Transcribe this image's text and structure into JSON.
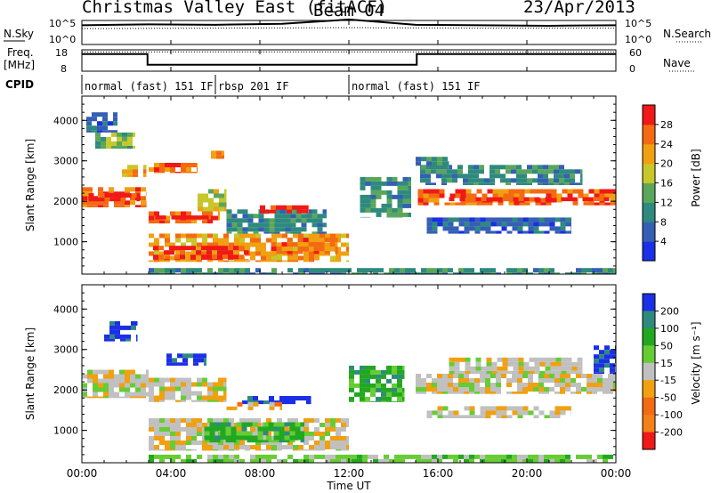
{
  "header": {
    "station": "Christmas Valley East (fitACF)",
    "beam": "Beam 04",
    "date": "23/Apr/2013"
  },
  "side_labels": {
    "nsky": "N.Sky",
    "nsearch": "N.Search",
    "freq": "Freq.",
    "freq_unit": "[MHz]",
    "nave": "Nave",
    "cpid": "CPID"
  },
  "noise_axis": {
    "left_ticks": [
      "10^5",
      "10^0"
    ],
    "right_ticks": [
      "10^5",
      "10^0"
    ]
  },
  "freq_axis": {
    "left_ticks": [
      "18",
      "8"
    ],
    "right_ticks": [
      "60",
      "0"
    ]
  },
  "chart_data": [
    {
      "id": "noise",
      "type": "line",
      "series": [
        {
          "name": "N.Sky",
          "style": "solid",
          "x": [
            0,
            3,
            6,
            9,
            12,
            15,
            18,
            21,
            24
          ],
          "values": [
            4.0,
            4.2,
            4.1,
            4.3,
            5.2,
            4.1,
            4.0,
            3.9,
            4.0
          ]
        },
        {
          "name": "N.Search",
          "style": "dotted",
          "x": [
            0,
            6,
            12,
            18,
            24
          ],
          "values": [
            3.3,
            3.4,
            3.5,
            3.4,
            3.4
          ]
        }
      ],
      "ylim": [
        0,
        5
      ],
      "xlim": [
        0,
        24
      ]
    },
    {
      "id": "freq_nave",
      "type": "line",
      "series": [
        {
          "name": "Freq.",
          "style": "solid",
          "x": [
            0,
            2.95,
            2.95,
            15.05,
            15.05,
            24
          ],
          "values": [
            16,
            16,
            11,
            11,
            16,
            16
          ]
        },
        {
          "name": "Nave",
          "style": "dotted",
          "x": [
            0,
            24
          ],
          "values": [
            17,
            17
          ]
        }
      ],
      "freq_range": [
        8,
        18
      ],
      "nave_range": [
        0,
        60
      ]
    },
    {
      "id": "cpid",
      "type": "table",
      "segments": [
        {
          "start": 0,
          "end": 6.0,
          "label": "normal (fast) 151 IF"
        },
        {
          "start": 6.0,
          "end": 12.0,
          "label": "rbsp 201 IF"
        },
        {
          "start": 12.0,
          "end": 24,
          "label": "normal (fast) 151 IF"
        }
      ]
    },
    {
      "id": "power",
      "type": "heatmap",
      "ylabel": "Slant Range [km]",
      "yticks": [
        1000,
        2000,
        3000,
        4000
      ],
      "ylim": [
        200,
        4600
      ],
      "colorbar": {
        "label": "Power [dB]",
        "ticks": [
          "4",
          "8",
          "12",
          "16",
          "20",
          "24",
          "28"
        ],
        "colors": [
          "#1a2fe6",
          "#355fb5",
          "#2f8a7e",
          "#5aa65a",
          "#c7c72a",
          "#f0a010",
          "#f46a12",
          "#f01818"
        ]
      },
      "bands": [
        {
          "x0": 0.0,
          "x1": 2.9,
          "r0": 1850,
          "r1": 2350,
          "level": 6
        },
        {
          "x0": 0.3,
          "x1": 2.6,
          "r0": 2000,
          "r1": 2200,
          "level": 7
        },
        {
          "x0": 0.6,
          "x1": 2.4,
          "r0": 3300,
          "r1": 3700,
          "level": 3
        },
        {
          "x0": 0.2,
          "x1": 1.6,
          "r0": 3700,
          "r1": 4200,
          "level": 1
        },
        {
          "x0": 1.8,
          "x1": 2.9,
          "r0": 2600,
          "r1": 2900,
          "level": 5
        },
        {
          "x0": 3.0,
          "x1": 5.2,
          "r0": 2700,
          "r1": 2950,
          "level": 6
        },
        {
          "x0": 3.0,
          "x1": 6.2,
          "r0": 1450,
          "r1": 1750,
          "level": 6
        },
        {
          "x0": 3.3,
          "x1": 5.8,
          "r0": 1550,
          "r1": 1650,
          "level": 7
        },
        {
          "x0": 5.2,
          "x1": 6.5,
          "r0": 1750,
          "r1": 2300,
          "level": 4
        },
        {
          "x0": 5.8,
          "x1": 6.4,
          "r0": 3050,
          "r1": 3250,
          "level": 5
        },
        {
          "x0": 3.0,
          "x1": 12.0,
          "r0": 500,
          "r1": 1200,
          "level": 5
        },
        {
          "x0": 3.2,
          "x1": 7.5,
          "r0": 550,
          "r1": 900,
          "level": 7
        },
        {
          "x0": 8.5,
          "x1": 11.5,
          "r0": 700,
          "r1": 1100,
          "level": 6
        },
        {
          "x0": 6.5,
          "x1": 11.0,
          "r0": 1200,
          "r1": 1800,
          "level": 2
        },
        {
          "x0": 8.0,
          "x1": 10.2,
          "r0": 1700,
          "r1": 1900,
          "level": 7
        },
        {
          "x0": 12.5,
          "x1": 14.8,
          "r0": 1600,
          "r1": 2600,
          "level": 2
        },
        {
          "x0": 15.1,
          "x1": 24.0,
          "r0": 1900,
          "r1": 2300,
          "level": 6
        },
        {
          "x0": 16.5,
          "x1": 24.0,
          "r0": 2000,
          "r1": 2100,
          "level": 7
        },
        {
          "x0": 15.2,
          "x1": 22.5,
          "r0": 2400,
          "r1": 2900,
          "level": 2
        },
        {
          "x0": 15.5,
          "x1": 22.0,
          "r0": 1200,
          "r1": 1600,
          "level": 1
        },
        {
          "x0": 15.0,
          "x1": 16.5,
          "r0": 2800,
          "r1": 3100,
          "level": 2
        },
        {
          "x0": 3.0,
          "x1": 24.0,
          "r0": 200,
          "r1": 350,
          "level": 2
        }
      ]
    },
    {
      "id": "velocity",
      "type": "heatmap",
      "ylabel": "Slant Range [km]",
      "xlabel": "Time UT",
      "xticks": [
        "00:00",
        "04:00",
        "08:00",
        "12:00",
        "16:00",
        "20:00",
        "00:00"
      ],
      "yticks": [
        1000,
        2000,
        3000,
        4000
      ],
      "ylim": [
        200,
        4600
      ],
      "colorbar": {
        "label": "Velocity [m s⁻¹]",
        "ticks": [
          "200",
          "100",
          "50",
          "15",
          "-15",
          "-50",
          "-100",
          "-200"
        ],
        "colors": [
          "#1a2fe6",
          "#2f8a7e",
          "#22a820",
          "#66cc33",
          "#c0c0c0",
          "#f0a010",
          "#f46a12",
          "#f48018",
          "#f01818"
        ]
      },
      "bands": [
        {
          "x0": 0.0,
          "x1": 3.0,
          "r0": 1800,
          "r1": 2500,
          "level": 4
        },
        {
          "x0": 3.0,
          "x1": 6.5,
          "r0": 1700,
          "r1": 2300,
          "level": 4
        },
        {
          "x0": 3.0,
          "x1": 12.0,
          "r0": 500,
          "r1": 1300,
          "level": 4
        },
        {
          "x0": 5.5,
          "x1": 10.0,
          "r0": 700,
          "r1": 1200,
          "level": 2
        },
        {
          "x0": 7.2,
          "x1": 10.3,
          "r0": 1650,
          "r1": 1850,
          "level": 0
        },
        {
          "x0": 6.5,
          "x1": 9.0,
          "r0": 1500,
          "r1": 1700,
          "level": 5
        },
        {
          "x0": 1.0,
          "x1": 2.5,
          "r0": 3200,
          "r1": 3700,
          "level": 0
        },
        {
          "x0": 3.8,
          "x1": 5.6,
          "r0": 2600,
          "r1": 2900,
          "level": 0
        },
        {
          "x0": 12.0,
          "x1": 14.5,
          "r0": 1700,
          "r1": 2600,
          "level": 2
        },
        {
          "x0": 15.0,
          "x1": 24.0,
          "r0": 1900,
          "r1": 2400,
          "level": 4
        },
        {
          "x0": 16.5,
          "x1": 22.5,
          "r0": 2400,
          "r1": 2800,
          "level": 4
        },
        {
          "x0": 15.5,
          "x1": 22.0,
          "r0": 1300,
          "r1": 1600,
          "level": 4
        },
        {
          "x0": 23.0,
          "x1": 24.0,
          "r0": 2400,
          "r1": 3100,
          "level": 0
        },
        {
          "x0": 3.0,
          "x1": 24.0,
          "r0": 200,
          "r1": 400,
          "level": 3
        }
      ]
    }
  ]
}
